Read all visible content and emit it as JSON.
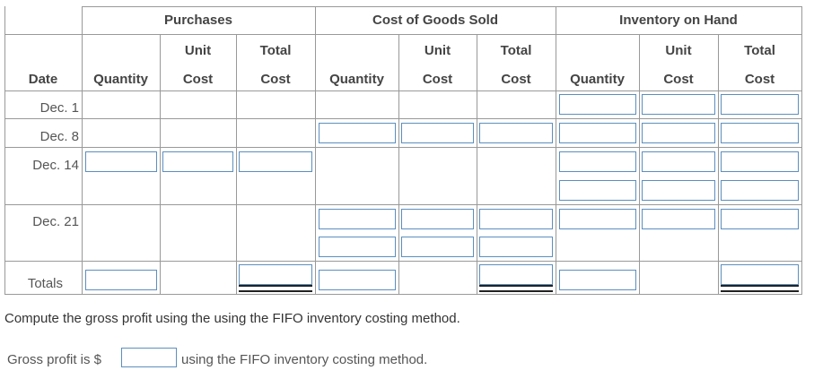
{
  "groups": {
    "purchases": "Purchases",
    "cogs": "Cost of Goods Sold",
    "inventory": "Inventory on Hand"
  },
  "columns": {
    "date": "Date",
    "quantity": "Quantity",
    "unit": "Unit",
    "total": "Total",
    "cost": "Cost"
  },
  "rows": {
    "dec1": "Dec. 1",
    "dec8": "Dec. 8",
    "dec14": "Dec. 14",
    "dec21": "Dec. 21",
    "totals": "Totals"
  },
  "instruction": "Compute the gross profit using the using the FIFO inventory costing method.",
  "gross_profit": {
    "label": "Gross profit is $",
    "suffix": "using the FIFO inventory costing method.",
    "value": ""
  }
}
